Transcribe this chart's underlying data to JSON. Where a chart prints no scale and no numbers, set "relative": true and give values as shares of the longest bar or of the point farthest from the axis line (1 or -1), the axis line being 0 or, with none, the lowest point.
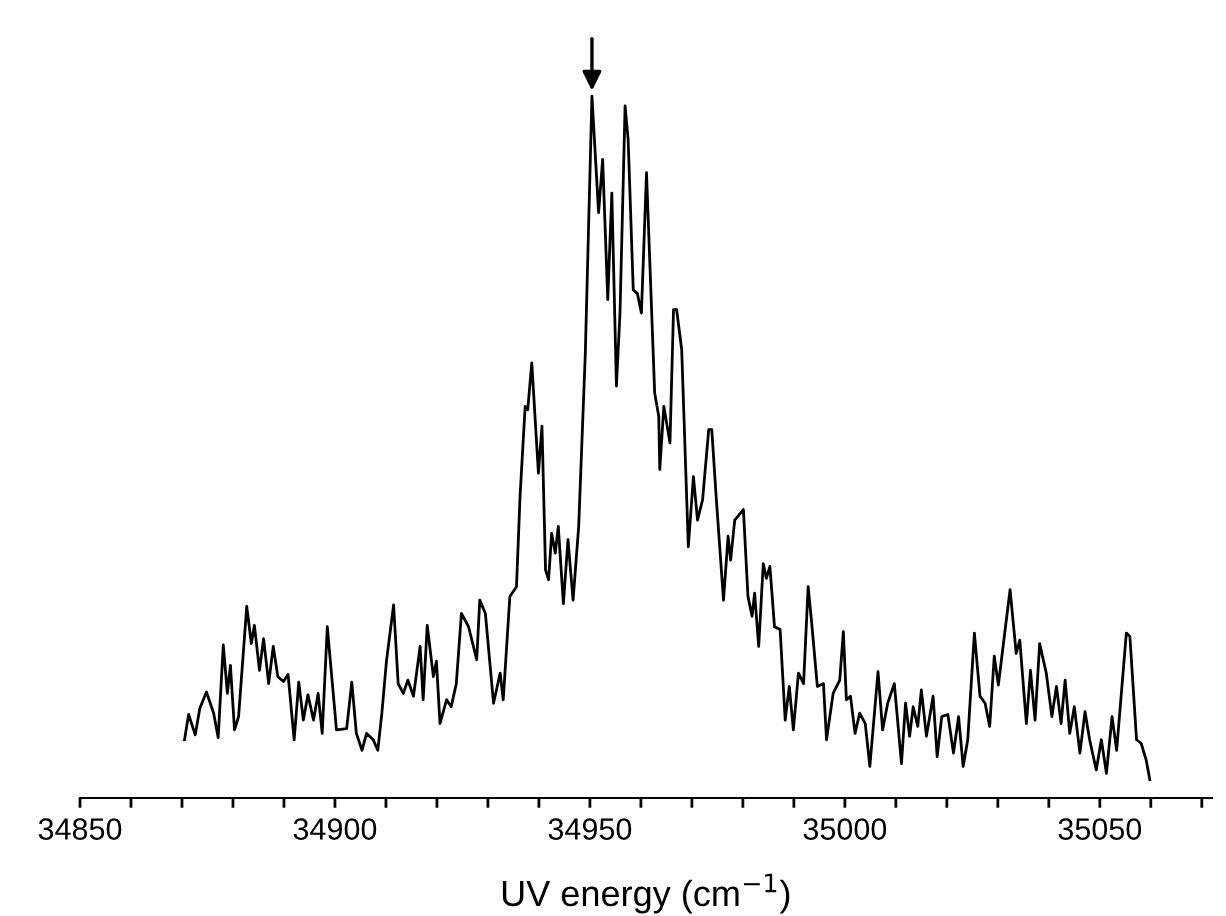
{
  "chart_data": {
    "type": "line",
    "xlabel": "UV energy (cm$^{−1}$)",
    "relative": true,
    "xlim": [
      34850,
      35072
    ],
    "xticks": [
      34850,
      {
        "value": 34860,
        "label": null
      },
      {
        "value": 34870,
        "label": null
      },
      {
        "value": 34880,
        "label": null
      },
      {
        "value": 34890,
        "label": null
      },
      34900,
      {
        "value": 34910,
        "label": null
      },
      {
        "value": 34920,
        "label": null
      },
      {
        "value": 34930,
        "label": null
      },
      {
        "value": 34940,
        "label": null
      },
      34950,
      {
        "value": 34960,
        "label": null
      },
      {
        "value": 34970,
        "label": null
      },
      {
        "value": 34980,
        "label": null
      },
      {
        "value": 34990,
        "label": null
      },
      35000,
      {
        "value": 35010,
        "label": null
      },
      {
        "value": 35020,
        "label": null
      },
      {
        "value": 35030,
        "label": null
      },
      {
        "value": 35040,
        "label": null
      },
      35050,
      {
        "value": 35060,
        "label": null
      },
      {
        "value": 35070,
        "label": null
      }
    ],
    "tick_labels": "x",
    "marker": "none",
    "line_style": "solid",
    "series": [
      {
        "color": "#000000",
        "x": [
          34870.5,
          34871.3,
          34872.6,
          34873.5,
          34874.8,
          34876.2,
          34877.1,
          34878.1,
          34878.9,
          34879.5,
          34880.3,
          34881.1,
          34882.7,
          34883.6,
          34884.2,
          34885.2,
          34886.0,
          34887.0,
          34887.9,
          34888.8,
          34889.9,
          34890.8,
          34892.0,
          34892.9,
          34893.8,
          34894.7,
          34895.8,
          34896.7,
          34897.5,
          34898.5,
          34900.3,
          34902.3,
          34903.3,
          34904.2,
          34905.3,
          34906.2,
          34907.5,
          34908.4,
          34909.2,
          34910.1,
          34911.5,
          34912.4,
          34913.4,
          34914.3,
          34915.4,
          34916.7,
          34917.3,
          34918.1,
          34919.3,
          34919.9,
          34920.6,
          34921.9,
          34922.8,
          34923.8,
          34924.8,
          34926.2,
          34927.8,
          34928.4,
          34929.5,
          34931.1,
          34932.4,
          34933.0,
          34934.3,
          34935.6,
          34936.3,
          34937.3,
          34937.8,
          34938.6,
          34939.9,
          34940.6,
          34941.3,
          34941.9,
          34942.5,
          34943.2,
          34943.8,
          34944.8,
          34945.7,
          34946.7,
          34947.8,
          34949.1,
          34950.4,
          34951.7,
          34952.5,
          34953.5,
          34954.3,
          34955.2,
          34955.9,
          34956.9,
          34957.5,
          34958.5,
          34959.3,
          34960.1,
          34961.1,
          34962.7,
          34963.5,
          34963.7,
          34964.5,
          34965.7,
          34966.4,
          34967.0,
          34968.0,
          34969.3,
          34970.3,
          34971.1,
          34972.1,
          34973.3,
          34973.9,
          34974.8,
          34976.2,
          34977.1,
          34977.6,
          34978.4,
          34980.1,
          34981.0,
          34981.8,
          34982.3,
          34983.1,
          34984.0,
          34984.6,
          34985.3,
          34986.2,
          34987.3,
          34988.3,
          34989.1,
          34989.9,
          34990.9,
          34991.9,
          34992.8,
          34993.5,
          34994.6,
          34995.8,
          34996.4,
          34997.7,
          34999.0,
          34999.7,
          35000.3,
          35001.1,
          35002.0,
          35002.9,
          35004.0,
          35004.9,
          35006.5,
          35007.4,
          35008.4,
          35009.7,
          35011.1,
          35011.9,
          35012.7,
          35013.4,
          35014.3,
          35015.0,
          35016.0,
          35017.3,
          35018.1,
          35019.0,
          35020.2,
          35021.3,
          35022.3,
          35023.2,
          35024.1,
          35025.4,
          35026.5,
          35027.5,
          35028.4,
          35029.3,
          35030.1,
          35031.5,
          35032.4,
          35033.6,
          35034.3,
          35035.6,
          35036.4,
          35037.3,
          35038.2,
          35039.5,
          35040.6,
          35041.5,
          35042.4,
          35043.2,
          35044.1,
          35045.0,
          35046.1,
          35047.1,
          35048.0,
          35049.3,
          35050.3,
          35051.3,
          35052.4,
          35053.3,
          35055.2,
          35055.9,
          35057.2,
          35058.1,
          35059.1,
          35059.8
        ],
        "values": [
          0.083,
          0.119,
          0.09,
          0.128,
          0.151,
          0.121,
          0.086,
          0.218,
          0.149,
          0.189,
          0.097,
          0.116,
          0.273,
          0.22,
          0.246,
          0.182,
          0.227,
          0.163,
          0.216,
          0.173,
          0.166,
          0.176,
          0.083,
          0.165,
          0.111,
          0.147,
          0.111,
          0.149,
          0.092,
          0.244,
          0.097,
          0.099,
          0.165,
          0.092,
          0.068,
          0.092,
          0.083,
          0.068,
          0.121,
          0.195,
          0.275,
          0.163,
          0.149,
          0.168,
          0.145,
          0.216,
          0.14,
          0.246,
          0.173,
          0.195,
          0.106,
          0.14,
          0.13,
          0.163,
          0.263,
          0.244,
          0.197,
          0.282,
          0.263,
          0.135,
          0.178,
          0.14,
          0.287,
          0.301,
          0.43,
          0.558,
          0.553,
          0.62,
          0.463,
          0.53,
          0.325,
          0.311,
          0.377,
          0.349,
          0.387,
          0.277,
          0.368,
          0.282,
          0.387,
          0.634,
          1.0,
          0.834,
          0.91,
          0.71,
          0.862,
          0.587,
          0.691,
          0.986,
          0.938,
          0.724,
          0.719,
          0.691,
          0.891,
          0.577,
          0.544,
          0.468,
          0.558,
          0.506,
          0.696,
          0.696,
          0.639,
          0.358,
          0.458,
          0.396,
          0.425,
          0.525,
          0.525,
          0.425,
          0.282,
          0.373,
          0.339,
          0.396,
          0.411,
          0.287,
          0.259,
          0.292,
          0.216,
          0.334,
          0.313,
          0.33,
          0.244,
          0.24,
          0.111,
          0.159,
          0.097,
          0.178,
          0.163,
          0.301,
          0.249,
          0.159,
          0.163,
          0.083,
          0.149,
          0.168,
          0.237,
          0.14,
          0.145,
          0.092,
          0.121,
          0.106,
          0.045,
          0.18,
          0.097,
          0.135,
          0.163,
          0.049,
          0.135,
          0.088,
          0.13,
          0.102,
          0.154,
          0.088,
          0.145,
          0.059,
          0.116,
          0.119,
          0.064,
          0.116,
          0.045,
          0.083,
          0.235,
          0.145,
          0.135,
          0.102,
          0.202,
          0.161,
          0.244,
          0.297,
          0.206,
          0.225,
          0.106,
          0.182,
          0.111,
          0.22,
          0.178,
          0.116,
          0.159,
          0.106,
          0.168,
          0.092,
          0.13,
          0.064,
          0.123,
          0.083,
          0.04,
          0.083,
          0.035,
          0.116,
          0.068,
          0.235,
          0.23,
          0.083,
          0.078,
          0.054,
          0.026
        ]
      }
    ]
  }
}
